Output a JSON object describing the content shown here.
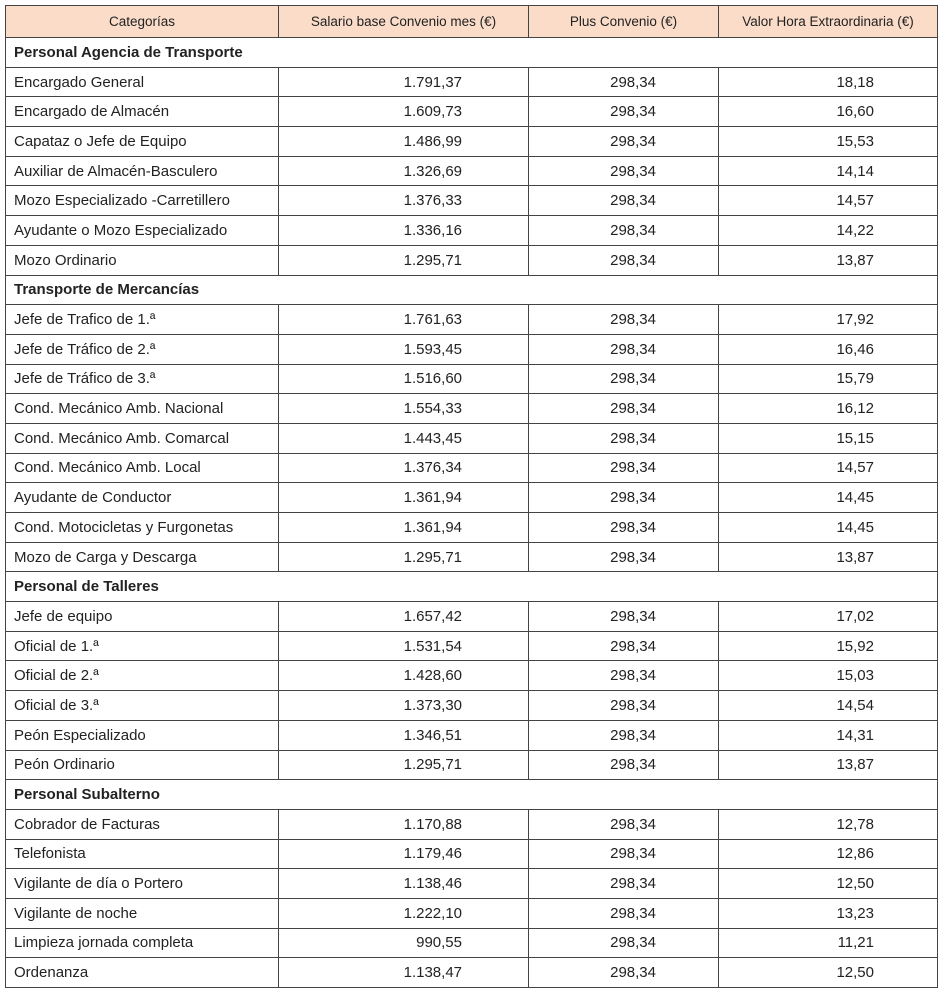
{
  "table": {
    "header": [
      "Categorías",
      "Salario base Convenio mes (€)",
      "Plus Convenio (€)",
      "Valor Hora Extraordinaria (€)"
    ],
    "sections": [
      {
        "title": "Personal Agencia de Transporte",
        "rows": [
          [
            "Encargado General",
            "1.791,37",
            "298,34",
            "18,18"
          ],
          [
            "Encargado de Almacén",
            "1.609,73",
            "298,34",
            "16,60"
          ],
          [
            "Capataz o Jefe de Equipo",
            "1.486,99",
            "298,34",
            "15,53"
          ],
          [
            "Auxiliar de Almacén-Basculero",
            "1.326,69",
            "298,34",
            "14,14"
          ],
          [
            "Mozo Especializado -Carretillero",
            "1.376,33",
            "298,34",
            "14,57"
          ],
          [
            "Ayudante o Mozo Especializado",
            "1.336,16",
            "298,34",
            "14,22"
          ],
          [
            "Mozo Ordinario",
            "1.295,71",
            "298,34",
            "13,87"
          ]
        ]
      },
      {
        "title": "Transporte de Mercancías",
        "rows": [
          [
            "Jefe de Trafico de 1.ª",
            "1.761,63",
            "298,34",
            "17,92"
          ],
          [
            "Jefe de Tráfico de 2.ª",
            "1.593,45",
            "298,34",
            "16,46"
          ],
          [
            "Jefe de Tráfico de 3.ª",
            "1.516,60",
            "298,34",
            "15,79"
          ],
          [
            "Cond. Mecánico Amb. Nacional",
            "1.554,33",
            "298,34",
            "16,12"
          ],
          [
            "Cond. Mecánico Amb. Comarcal",
            "1.443,45",
            "298,34",
            "15,15"
          ],
          [
            "Cond. Mecánico Amb. Local",
            "1.376,34",
            "298,34",
            "14,57"
          ],
          [
            "Ayudante de Conductor",
            "1.361,94",
            "298,34",
            "14,45"
          ],
          [
            "Cond. Motocicletas y Furgonetas",
            "1.361,94",
            "298,34",
            "14,45"
          ],
          [
            "Mozo de Carga y Descarga",
            "1.295,71",
            "298,34",
            "13,87"
          ]
        ]
      },
      {
        "title": "Personal de Talleres",
        "rows": [
          [
            "Jefe de equipo",
            "1.657,42",
            "298,34",
            "17,02"
          ],
          [
            "Oficial de 1.ª",
            "1.531,54",
            "298,34",
            "15,92"
          ],
          [
            "Oficial de 2.ª",
            "1.428,60",
            "298,34",
            "15,03"
          ],
          [
            "Oficial de 3.ª",
            "1.373,30",
            "298,34",
            "14,54"
          ],
          [
            "Peón Especializado",
            "1.346,51",
            "298,34",
            "14,31"
          ],
          [
            "Peón Ordinario",
            "1.295,71",
            "298,34",
            "13,87"
          ]
        ]
      },
      {
        "title": "Personal Subalterno",
        "rows": [
          [
            "Cobrador de Facturas",
            "1.170,88",
            "298,34",
            "12,78"
          ],
          [
            "Telefonista",
            "1.179,46",
            "298,34",
            "12,86"
          ],
          [
            "Vigilante de día o Portero",
            "1.138,46",
            "298,34",
            "12,50"
          ],
          [
            "Vigilante de noche",
            "1.222,10",
            "298,34",
            "13,23"
          ],
          [
            "Limpieza jornada completa",
            "990,55",
            "298,34",
            "11,21"
          ],
          [
            "Ordenanza",
            "1.138,47",
            "298,34",
            "12,50"
          ]
        ]
      }
    ]
  }
}
